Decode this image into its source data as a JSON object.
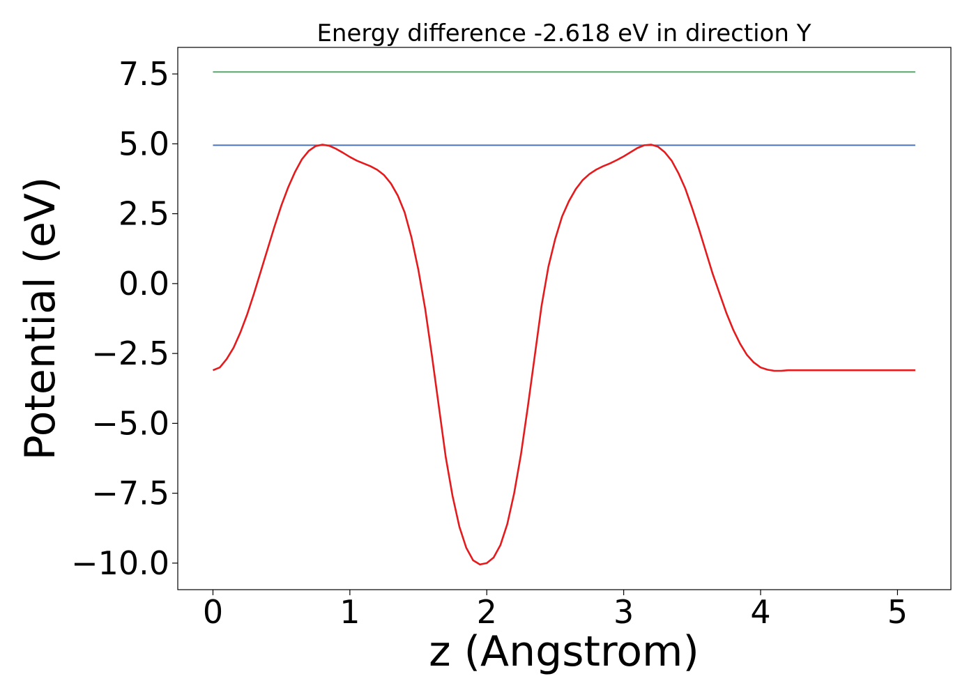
{
  "chart_data": {
    "type": "line",
    "title": "Energy difference -2.618 eV in direction Y",
    "xlabel": "z (Angstrom)",
    "ylabel": "Potential (eV)",
    "xlim": [
      -0.257,
      5.39
    ],
    "ylim": [
      -10.95,
      8.45
    ],
    "grid": false,
    "x_ticks": [
      {
        "value": 0,
        "label": "0"
      },
      {
        "value": 1,
        "label": "1"
      },
      {
        "value": 2,
        "label": "2"
      },
      {
        "value": 3,
        "label": "3"
      },
      {
        "value": 4,
        "label": "4"
      },
      {
        "value": 5,
        "label": "5"
      }
    ],
    "y_ticks": [
      {
        "value": 7.5,
        "label": "7.5"
      },
      {
        "value": 5.0,
        "label": "5.0"
      },
      {
        "value": 2.5,
        "label": "2.5"
      },
      {
        "value": 0.0,
        "label": "0.0"
      },
      {
        "value": -2.5,
        "label": "−2.5"
      },
      {
        "value": -5.0,
        "label": "−5.0"
      },
      {
        "value": -7.5,
        "label": "−7.5"
      },
      {
        "value": -10.0,
        "label": "−10.0"
      }
    ],
    "series": [
      {
        "color": "#4c72b0",
        "x": [
          0,
          5.13
        ],
        "y": [
          4.95,
          4.95
        ]
      },
      {
        "color": "#55a868",
        "x": [
          0,
          5.13
        ],
        "y": [
          7.57,
          7.57
        ]
      },
      {
        "color": "#e41a1c",
        "x": [
          0,
          0.05,
          0.1,
          0.15,
          0.2,
          0.25,
          0.3,
          0.35,
          0.4,
          0.45,
          0.5,
          0.55,
          0.6,
          0.65,
          0.7,
          0.75,
          0.8,
          0.85,
          0.9,
          0.95,
          1.0,
          1.05,
          1.1,
          1.15,
          1.2,
          1.25,
          1.3,
          1.35,
          1.4,
          1.45,
          1.5,
          1.55,
          1.6,
          1.65,
          1.7,
          1.75,
          1.8,
          1.85,
          1.9,
          1.95,
          2.0,
          2.05,
          2.1,
          2.15,
          2.2,
          2.25,
          2.3,
          2.35,
          2.4,
          2.45,
          2.5,
          2.55,
          2.6,
          2.65,
          2.7,
          2.75,
          2.8,
          2.85,
          2.9,
          2.95,
          3.0,
          3.05,
          3.1,
          3.15,
          3.2,
          3.25,
          3.3,
          3.35,
          3.4,
          3.45,
          3.5,
          3.55,
          3.6,
          3.65,
          3.7,
          3.75,
          3.8,
          3.85,
          3.9,
          3.95,
          4.0,
          4.05,
          4.1,
          4.15,
          4.2,
          4.25,
          4.3,
          4.35,
          4.4,
          4.45,
          4.5,
          4.55,
          4.6,
          4.65,
          4.7,
          4.75,
          4.8,
          4.85,
          4.9,
          4.95,
          5.0,
          5.05,
          5.13
        ],
        "y": [
          -3.1,
          -3.0,
          -2.7,
          -2.3,
          -1.75,
          -1.1,
          -0.35,
          0.45,
          1.25,
          2.05,
          2.8,
          3.45,
          4.0,
          4.45,
          4.75,
          4.92,
          4.97,
          4.93,
          4.82,
          4.68,
          4.53,
          4.4,
          4.3,
          4.2,
          4.07,
          3.88,
          3.58,
          3.15,
          2.55,
          1.65,
          0.5,
          -0.9,
          -2.6,
          -4.4,
          -6.2,
          -7.6,
          -8.7,
          -9.45,
          -9.9,
          -10.05,
          -10.0,
          -9.8,
          -9.35,
          -8.6,
          -7.5,
          -6.1,
          -4.4,
          -2.6,
          -0.8,
          0.6,
          1.6,
          2.4,
          2.95,
          3.38,
          3.7,
          3.92,
          4.08,
          4.2,
          4.3,
          4.42,
          4.55,
          4.7,
          4.85,
          4.95,
          4.97,
          4.9,
          4.7,
          4.4,
          3.95,
          3.4,
          2.7,
          1.95,
          1.15,
          0.35,
          -0.35,
          -1.05,
          -1.65,
          -2.15,
          -2.55,
          -2.82,
          -3.0,
          -3.08,
          -3.12,
          -3.12,
          -3.1,
          -3.1,
          -3.1,
          -3.1,
          -3.1,
          -3.1,
          -3.1,
          -3.1,
          -3.1,
          -3.1,
          -3.1,
          -3.1,
          -3.1,
          -3.1,
          -3.1,
          -3.1,
          -3.1,
          -3.1,
          -3.1
        ]
      }
    ]
  }
}
